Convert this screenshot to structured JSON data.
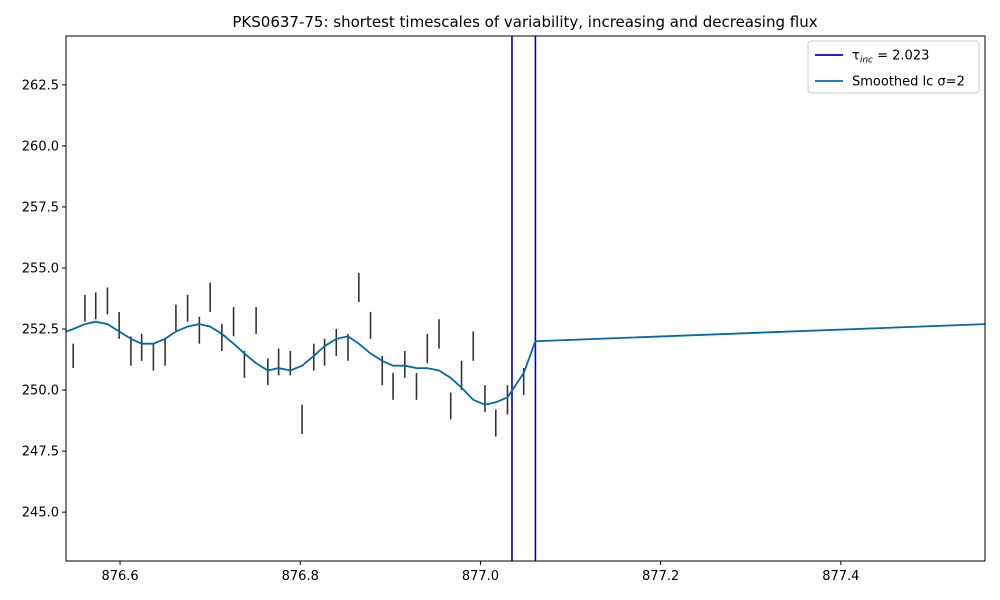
{
  "chart_data": {
    "type": "line",
    "title": "PKS0637-75: shortest timescales of variability, increasing and decreasing flux",
    "xlabel": "",
    "ylabel": "",
    "xlim": [
      876.54,
      877.56
    ],
    "ylim": [
      243.0,
      264.5
    ],
    "x_ticks": [
      876.6,
      876.8,
      877.0,
      877.2,
      877.4
    ],
    "x_tick_labels": [
      "876.6",
      "876.8",
      "877.0",
      "877.2",
      "877.4"
    ],
    "y_ticks": [
      245.0,
      247.5,
      250.0,
      252.5,
      255.0,
      257.5,
      260.0,
      262.5
    ],
    "y_tick_labels": [
      "245.0",
      "247.5",
      "250.0",
      "252.5",
      "255.0",
      "257.5",
      "260.0",
      "262.5"
    ],
    "grid": false,
    "legend_position": "top-right",
    "legend": [
      {
        "label_prefix": "τ",
        "label_sub": "inc",
        "label_suffix": " = 2.023",
        "color": "#0000cc",
        "kind": "vline"
      },
      {
        "label_prefix": "Smoothed lc σ=2",
        "label_sub": "",
        "label_suffix": "",
        "color": "#006ba4",
        "kind": "line"
      }
    ],
    "vlines": {
      "color": "#0000cc",
      "x": [
        877.035,
        877.061
      ]
    },
    "errorbars": {
      "color": "#333333",
      "x": [
        876.548,
        876.561,
        876.573,
        876.586,
        876.599,
        876.612,
        876.624,
        876.637,
        876.65,
        876.662,
        876.675,
        876.688,
        876.7,
        876.713,
        876.726,
        876.738,
        876.751,
        876.764,
        876.776,
        876.789,
        876.802,
        876.815,
        876.827,
        876.84,
        876.853,
        876.865,
        876.878,
        876.891,
        876.903,
        876.916,
        876.929,
        876.941,
        876.954,
        876.967,
        876.979,
        876.992,
        877.005,
        877.017,
        877.03,
        877.048
      ],
      "lo": [
        250.9,
        252.8,
        252.9,
        253.1,
        252.1,
        251.0,
        251.2,
        250.8,
        251.0,
        252.4,
        252.8,
        251.9,
        253.2,
        251.6,
        252.2,
        250.5,
        252.3,
        250.2,
        250.6,
        250.6,
        248.2,
        250.8,
        251.0,
        251.4,
        251.2,
        253.6,
        252.1,
        250.2,
        249.6,
        250.5,
        249.6,
        251.1,
        251.7,
        248.8,
        250.0,
        251.2,
        249.1,
        248.1,
        249.0,
        249.8
      ],
      "hi": [
        251.9,
        253.9,
        254.0,
        254.2,
        253.2,
        252.2,
        252.3,
        251.9,
        252.1,
        253.5,
        253.9,
        253.0,
        254.4,
        252.7,
        253.4,
        251.6,
        253.4,
        251.3,
        251.7,
        251.6,
        249.4,
        251.9,
        252.1,
        252.5,
        252.3,
        254.8,
        253.2,
        251.4,
        250.7,
        251.6,
        250.7,
        252.3,
        252.9,
        249.9,
        251.2,
        252.4,
        250.2,
        249.2,
        250.2,
        250.9
      ]
    },
    "series": [
      {
        "name": "Smoothed lc σ=2",
        "color": "#006ba4",
        "x": [
          876.54,
          876.548,
          876.561,
          876.573,
          876.586,
          876.599,
          876.612,
          876.624,
          876.637,
          876.65,
          876.662,
          876.675,
          876.688,
          876.7,
          876.713,
          876.726,
          876.738,
          876.751,
          876.764,
          876.776,
          876.789,
          876.802,
          876.815,
          876.827,
          876.84,
          876.853,
          876.865,
          876.878,
          876.891,
          876.903,
          876.916,
          876.929,
          876.941,
          876.954,
          876.967,
          876.979,
          876.992,
          877.005,
          877.017,
          877.03,
          877.048,
          877.061,
          877.56
        ],
        "y": [
          252.4,
          252.5,
          252.7,
          252.8,
          252.7,
          252.4,
          252.1,
          251.9,
          251.9,
          252.1,
          252.4,
          252.6,
          252.7,
          252.6,
          252.3,
          251.9,
          251.5,
          251.1,
          250.8,
          250.9,
          250.8,
          251.0,
          251.4,
          251.8,
          252.1,
          252.2,
          251.9,
          251.5,
          251.2,
          251.0,
          251.0,
          250.9,
          250.9,
          250.8,
          250.5,
          250.1,
          249.6,
          249.4,
          249.5,
          249.7,
          250.7,
          252.0,
          252.7
        ]
      }
    ]
  }
}
